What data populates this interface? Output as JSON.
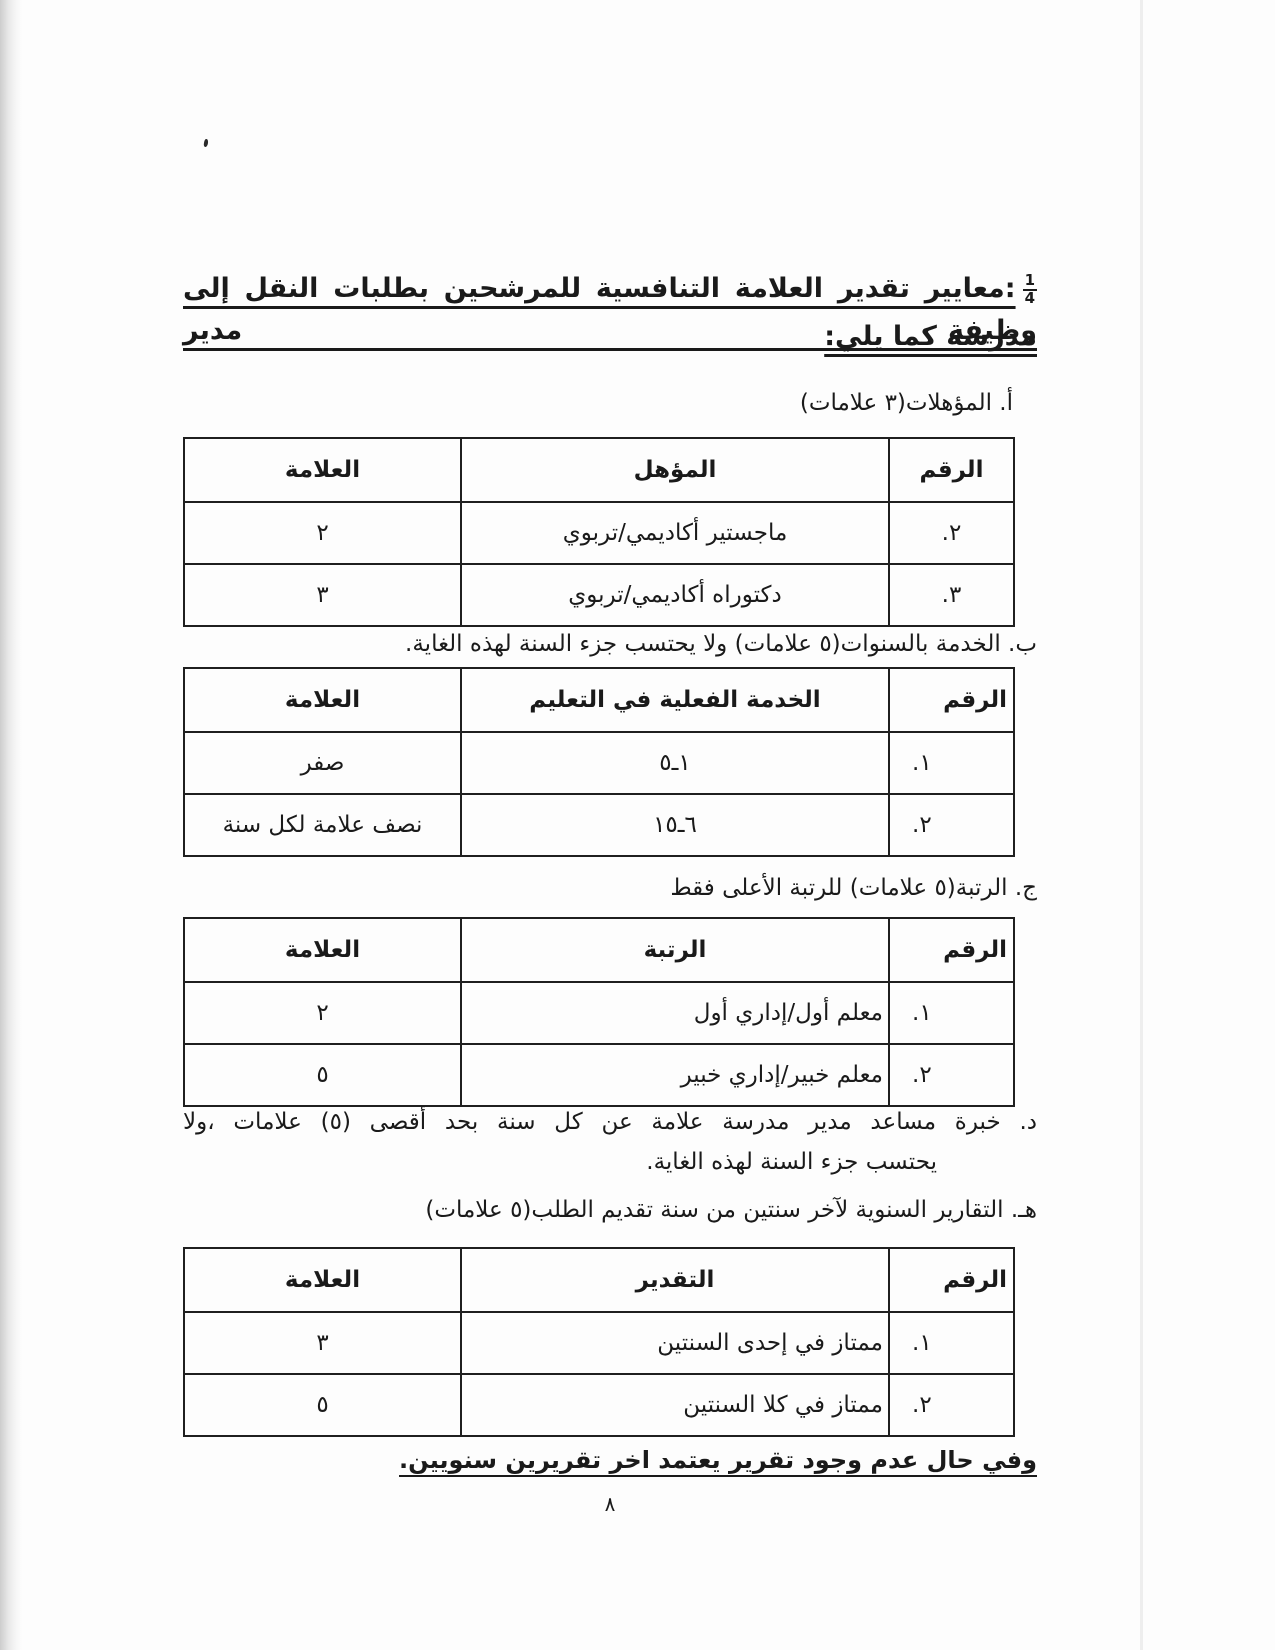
{
  "title": {
    "fraction_numerator": "1",
    "fraction_denominator": "4",
    "line1": ":معايير تقدير العلامة التنافسية للمرشحين بطلبات النقل إلى وظيفة مدير",
    "line2": "مدرسة كما يلي:"
  },
  "section_a": {
    "heading": "أ. المؤهلات(٣ علامات)",
    "table": {
      "col_num": "الرقم",
      "col_desc": "المؤهل",
      "col_mark": "العلامة",
      "rows": [
        {
          "num": "٢.",
          "desc": "ماجستير أكاديمي/تربوي",
          "mark": "٢"
        },
        {
          "num": "٣.",
          "desc": "دكتوراه أكاديمي/تربوي",
          "mark": "٣"
        }
      ]
    }
  },
  "section_b": {
    "heading": "ب. الخدمة بالسنوات(٥ علامات) ولا يحتسب جزء السنة لهذه الغاية.",
    "table": {
      "col_num": "الرقم",
      "col_desc": "الخدمة الفعلية في التعليم",
      "col_mark": "العلامة",
      "rows": [
        {
          "num": "١.",
          "desc": "١ـ٥",
          "mark": "صفر"
        },
        {
          "num": "٢.",
          "desc": "٦ـ١٥",
          "mark": "نصف علامة لكل سنة"
        }
      ]
    }
  },
  "section_c": {
    "heading": "ج. الرتبة(٥ علامات) للرتبة الأعلى فقط",
    "table": {
      "col_num": "الرقم",
      "col_desc": "الرتبة",
      "col_mark": "العلامة",
      "rows": [
        {
          "num": "١.",
          "desc": "معلم أول/إداري أول",
          "mark": "٢"
        },
        {
          "num": "٢.",
          "desc": "معلم خبير/إداري خبير",
          "mark": "٥"
        }
      ]
    }
  },
  "section_d": {
    "line1": "د. خبرة مساعد مدير مدرسة علامة عن كل سنة بحد أقصى (٥) علامات ،ولا",
    "line2": "يحتسب جزء السنة لهذه الغاية."
  },
  "section_e": {
    "heading": "هـ. التقارير السنوية لآخر سنتين من سنة تقديم الطلب(٥ علامات)",
    "table": {
      "col_num": "الرقم",
      "col_desc": "التقدير",
      "col_mark": "العلامة",
      "rows": [
        {
          "num": "١.",
          "desc": "ممتاز في إحدى السنتين",
          "mark": "٣"
        },
        {
          "num": "٢.",
          "desc": "ممتاز في كلا السنتين",
          "mark": "٥"
        }
      ]
    }
  },
  "footer": {
    "note": "وفي حال عدم وجود تقرير يعتمد اخر تقريرين سنويين.",
    "page_number": "٨"
  }
}
